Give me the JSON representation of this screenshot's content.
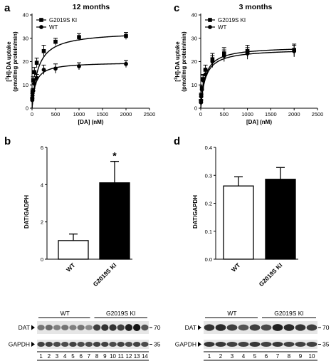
{
  "panels": {
    "a": {
      "letter": "a",
      "title": "12 months"
    },
    "b": {
      "letter": "b"
    },
    "c": {
      "letter": "c",
      "title": "3 months"
    },
    "d": {
      "letter": "d"
    }
  },
  "chart_data": [
    {
      "id": "a",
      "type": "line",
      "title": "12 months",
      "xlabel": "[DA] (nM)",
      "ylabel_line1": "[3H]-DA uptake",
      "ylabel_line2": "(pmol/mg protein/min)",
      "xlim": [
        0,
        2500
      ],
      "ylim": [
        0,
        40
      ],
      "xticks": [
        0,
        500,
        1000,
        1500,
        2000,
        2500
      ],
      "yticks": [
        0,
        10,
        20,
        30,
        40
      ],
      "legend_position": "top-left",
      "series": [
        {
          "name": "G2019S KI",
          "marker": "square",
          "x": [
            5,
            10,
            25,
            50,
            100,
            250,
            500,
            1000,
            2000
          ],
          "y": [
            4,
            7,
            12,
            15.5,
            19.5,
            24.5,
            28.5,
            30.5,
            31
          ],
          "err": [
            0.8,
            1.2,
            1.5,
            2,
            2,
            2.5,
            1.5,
            1.5,
            1.5
          ],
          "fit": {
            "vmax": 33,
            "km": 125
          }
        },
        {
          "name": "WT",
          "marker": "circle",
          "x": [
            5,
            10,
            25,
            50,
            100,
            250,
            500,
            1000,
            2000
          ],
          "y": [
            3.5,
            5.5,
            7.5,
            10.5,
            13,
            16.5,
            17,
            18,
            19
          ],
          "err": [
            0.6,
            0.8,
            1,
            1.5,
            1.5,
            2,
            2,
            1.5,
            1.5
          ],
          "fit": {
            "vmax": 19.8,
            "km": 70
          }
        }
      ]
    },
    {
      "id": "b",
      "type": "bar",
      "ylabel": "DAT/GADPH",
      "ylim": [
        0,
        6
      ],
      "yticks": [
        0,
        2,
        4,
        6
      ],
      "categories": [
        "WT",
        "G2019S KI"
      ],
      "values": [
        1.0,
        4.1
      ],
      "errors": [
        0.35,
        1.15
      ],
      "fills": [
        "#ffffff",
        "#000000"
      ],
      "annotations": [
        "",
        "*"
      ]
    },
    {
      "id": "c",
      "type": "line",
      "title": "3 months",
      "xlabel": "[DA] (nM)",
      "ylabel_line1": "[3H]-DA uptake",
      "ylabel_line2": "(pmol/mg protein/min)",
      "xlim": [
        0,
        2500
      ],
      "ylim": [
        0,
        40
      ],
      "xticks": [
        0,
        500,
        1000,
        1500,
        2000,
        2500
      ],
      "yticks": [
        0,
        10,
        20,
        30,
        40
      ],
      "legend_position": "top-left",
      "series": [
        {
          "name": "G2019S KI",
          "marker": "square",
          "x": [
            5,
            10,
            25,
            50,
            100,
            250,
            500,
            1000,
            2000
          ],
          "y": [
            3,
            5.5,
            8.5,
            12.5,
            16.5,
            21,
            23.5,
            24.5,
            25
          ],
          "err": [
            0.8,
            1,
            1.5,
            2,
            2,
            2.5,
            2.5,
            2.5,
            2.5
          ],
          "fit": {
            "vmax": 26.5,
            "km": 95
          }
        },
        {
          "name": "WT",
          "marker": "circle",
          "x": [
            5,
            10,
            25,
            50,
            100,
            250,
            500,
            1000,
            2000
          ],
          "y": [
            2.5,
            5,
            8,
            12,
            14.5,
            20,
            22.5,
            23.5,
            24.5
          ],
          "err": [
            0.7,
            1,
            1.5,
            2,
            2,
            2.5,
            2.5,
            2.5,
            2.5
          ],
          "fit": {
            "vmax": 25.5,
            "km": 100
          }
        }
      ]
    },
    {
      "id": "d",
      "type": "bar",
      "ylabel": "DAT/GAPDH",
      "ylim": [
        0,
        0.4
      ],
      "yticks": [
        "0.0",
        "0.1",
        "0.2",
        "0.3",
        "0.4"
      ],
      "categories": [
        "WT",
        "G2019S KI"
      ],
      "values": [
        0.262,
        0.286
      ],
      "errors": [
        0.033,
        0.042
      ],
      "fills": [
        "#ffffff",
        "#000000"
      ],
      "annotations": [
        "",
        ""
      ]
    }
  ],
  "blots": {
    "left": {
      "group_wt": "WT",
      "group_ki": "G2019S KI",
      "row_dat": "DAT",
      "row_gapdh": "GAPDH",
      "mw_dat": "70",
      "mw_gapdh": "35",
      "lanes": [
        "1",
        "2",
        "3",
        "4",
        "5",
        "6",
        "7",
        "8",
        "9",
        "10",
        "11",
        "12",
        "13",
        "14"
      ],
      "dat_intensity": [
        0.55,
        0.6,
        0.5,
        0.55,
        0.5,
        0.55,
        0.45,
        0.8,
        0.85,
        0.85,
        0.8,
        0.95,
        1.0,
        0.7
      ],
      "gapdh_intensity": [
        0.85,
        0.85,
        0.8,
        0.8,
        0.85,
        0.8,
        0.8,
        0.85,
        0.85,
        0.8,
        0.85,
        0.8,
        0.85,
        0.8
      ]
    },
    "right": {
      "group_wt": "WT",
      "group_ki": "G2019S KI",
      "row_dat": "DAT",
      "row_gapdh": "GAPDH",
      "mw_dat": "70",
      "mw_gapdh": "35",
      "lanes": [
        "1",
        "2",
        "3",
        "4",
        "5",
        "6",
        "7",
        "8",
        "9",
        "10"
      ],
      "dat_intensity": [
        0.85,
        0.9,
        0.8,
        0.7,
        0.8,
        0.75,
        0.95,
        0.9,
        0.85,
        0.8
      ],
      "gapdh_intensity": [
        0.9,
        0.9,
        0.85,
        0.85,
        0.9,
        0.85,
        0.9,
        0.85,
        0.85,
        0.85
      ]
    }
  }
}
